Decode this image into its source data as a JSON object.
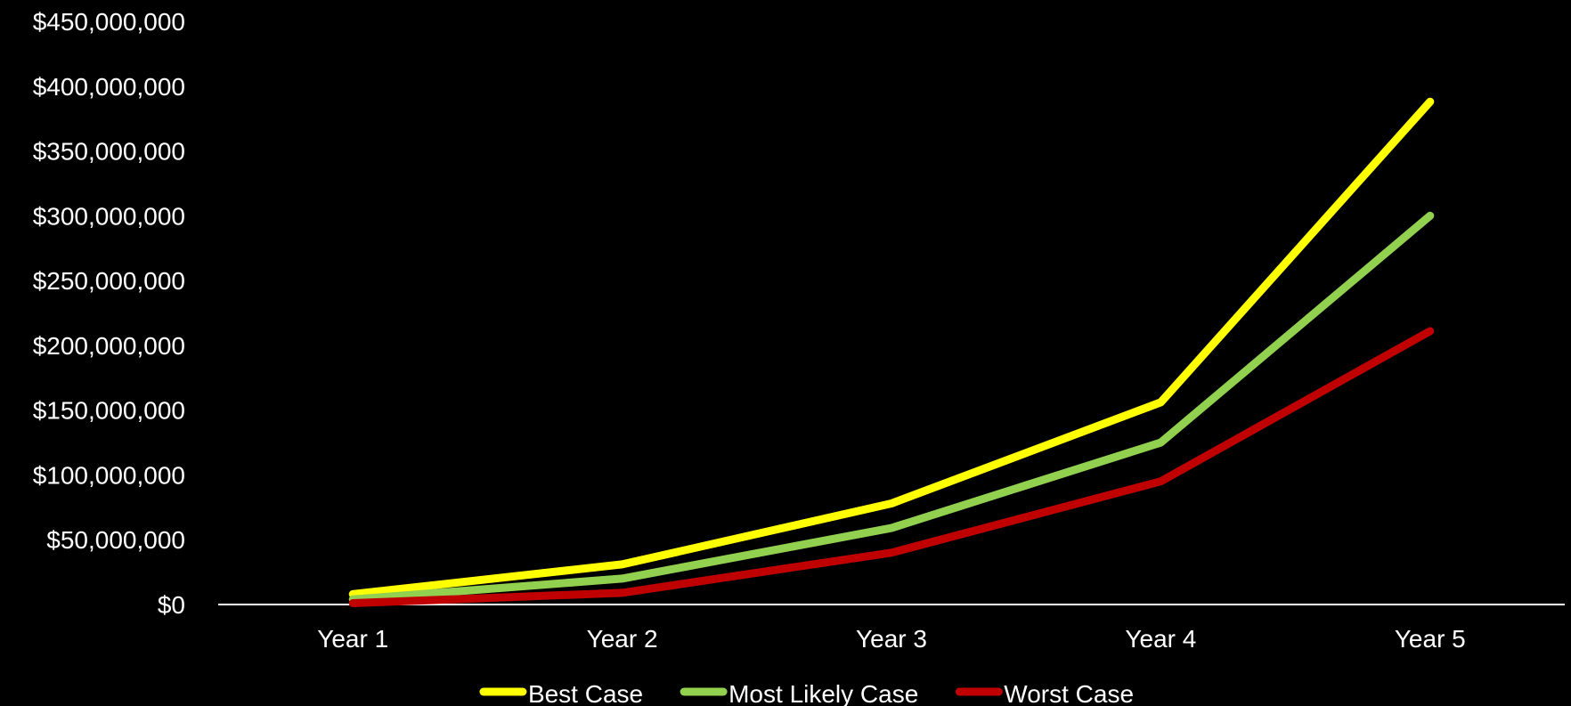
{
  "chart_data": {
    "type": "line",
    "title": "",
    "xlabel": "",
    "ylabel": "",
    "categories": [
      "Year 1",
      "Year 2",
      "Year 3",
      "Year 4",
      "Year 5"
    ],
    "ylim": [
      0,
      450000000
    ],
    "y_ticks": [
      0,
      50000000,
      100000000,
      150000000,
      200000000,
      250000000,
      300000000,
      350000000,
      400000000,
      450000000
    ],
    "y_tick_labels": [
      "$0",
      "$50,000,000",
      "$100,000,000",
      "$150,000,000",
      "$200,000,000",
      "$250,000,000",
      "$300,000,000",
      "$350,000,000",
      "$400,000,000",
      "$450,000,000"
    ],
    "grid": false,
    "legend_position": "bottom",
    "series": [
      {
        "name": "Best Case",
        "color": "#ffff00",
        "values": [
          8000000,
          31000000,
          78000000,
          156000000,
          388000000
        ]
      },
      {
        "name": "Most Likely Case",
        "color": "#92d050",
        "values": [
          4000000,
          20000000,
          59000000,
          125000000,
          300000000
        ]
      },
      {
        "name": "Worst Case",
        "color": "#c00000",
        "values": [
          1000000,
          9000000,
          40000000,
          95000000,
          211000000
        ]
      }
    ]
  }
}
